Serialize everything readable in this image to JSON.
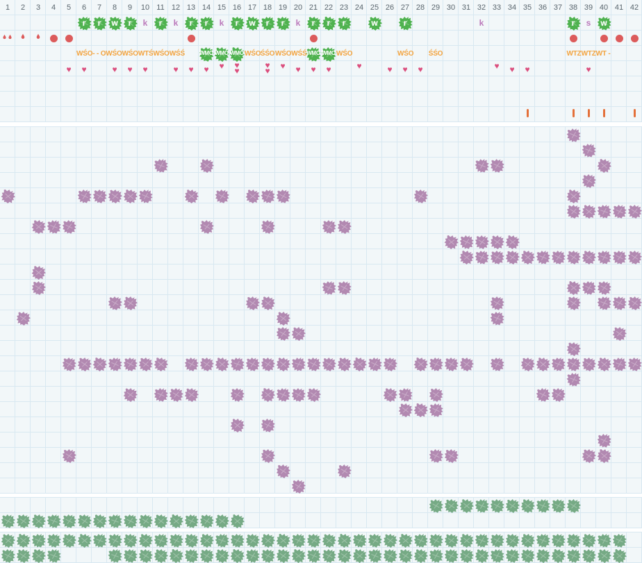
{
  "colors": {
    "band_bg": "#f2f7f9",
    "grid_line": "#d8e8f1",
    "week_text": "#5a666e",
    "green_blob": "#4fb24f",
    "purple_blob": "#b289b1",
    "sage_blob": "#76aa85",
    "red_mark": "#dc5b5b",
    "heart_pink": "#db4e7d",
    "code_orange": "#f3a440",
    "tick_orange": "#e4703a",
    "letter_purple": "#bb79bb",
    "blob_letter_white": "#ffffff"
  },
  "chart_data": {
    "type": "heatmap",
    "title": "",
    "x_axis_label": "",
    "weeks": [
      1,
      2,
      3,
      4,
      5,
      6,
      7,
      8,
      9,
      10,
      11,
      12,
      13,
      14,
      15,
      16,
      17,
      18,
      19,
      20,
      21,
      22,
      23,
      24,
      25,
      26,
      27,
      28,
      29,
      30,
      31,
      32,
      33,
      34,
      35,
      36,
      37,
      38,
      39,
      40,
      41,
      42
    ],
    "top": {
      "letters": [
        {
          "col": 6,
          "ch": "r",
          "blob": true
        },
        {
          "col": 7,
          "ch": "r",
          "blob": true
        },
        {
          "col": 8,
          "ch": "w",
          "blob": true
        },
        {
          "col": 9,
          "ch": "r",
          "blob": true
        },
        {
          "col": 10,
          "ch": "k",
          "blob": false
        },
        {
          "col": 11,
          "ch": "r",
          "blob": true
        },
        {
          "col": 12,
          "ch": "k",
          "blob": false
        },
        {
          "col": 13,
          "ch": "r",
          "blob": true
        },
        {
          "col": 14,
          "ch": "r",
          "blob": true
        },
        {
          "col": 15,
          "ch": "k",
          "blob": false
        },
        {
          "col": 16,
          "ch": "r",
          "blob": true
        },
        {
          "col": 17,
          "ch": "w",
          "blob": true
        },
        {
          "col": 18,
          "ch": "r",
          "blob": true
        },
        {
          "col": 19,
          "ch": "r",
          "blob": true
        },
        {
          "col": 20,
          "ch": "k",
          "blob": false
        },
        {
          "col": 21,
          "ch": "r",
          "blob": true
        },
        {
          "col": 22,
          "ch": "r",
          "blob": true
        },
        {
          "col": 23,
          "ch": "r",
          "blob": true
        },
        {
          "col": 25,
          "ch": "w",
          "blob": true
        },
        {
          "col": 27,
          "ch": "r",
          "blob": true
        },
        {
          "col": 32,
          "ch": "k",
          "blob": false
        },
        {
          "col": 38,
          "ch": "r",
          "blob": true
        },
        {
          "col": 39,
          "ch": "s",
          "blob": false
        },
        {
          "col": 40,
          "ch": "w",
          "blob": true
        }
      ],
      "water_marks": [
        {
          "col": 1,
          "type": "drop-pair"
        },
        {
          "col": 2,
          "type": "drop"
        },
        {
          "col": 3,
          "type": "drop"
        },
        {
          "col": 4,
          "type": "dot"
        },
        {
          "col": 5,
          "type": "dot"
        },
        {
          "col": 13,
          "type": "dot"
        },
        {
          "col": 21,
          "type": "dot"
        },
        {
          "col": 38,
          "type": "dot"
        },
        {
          "col": 40,
          "type": "dot"
        },
        {
          "col": 41,
          "type": "dot"
        },
        {
          "col": 42,
          "type": "dot"
        }
      ],
      "code_blobs": [
        {
          "col": 14,
          "text": "WMO"
        },
        {
          "col": 15,
          "text": "WMO"
        },
        {
          "col": 16,
          "text": "WMO"
        },
        {
          "col": 21,
          "text": "WMO"
        },
        {
          "col": 22,
          "text": "WMO"
        }
      ],
      "code_texts": [
        {
          "col": 6,
          "span": 7,
          "text": "WŚO- - OWŚOWŚOWTŚWŚOWŚŚ"
        },
        {
          "col": 17,
          "span": 1,
          "text": "WŚO"
        },
        {
          "col": 18,
          "span": 1,
          "text": "ŚŚO"
        },
        {
          "col": 19,
          "span": 2,
          "text": "WŚOWŚŚ"
        },
        {
          "col": 23,
          "span": 1,
          "text": "WŚO"
        },
        {
          "col": 27,
          "span": 1,
          "text": "WŚO"
        },
        {
          "col": 29,
          "span": 1,
          "text": "ŚŚO"
        },
        {
          "col": 38,
          "span": 3,
          "text": "WTZWTZWT -"
        }
      ],
      "hearts": [
        {
          "col": 5
        },
        {
          "col": 6
        },
        {
          "col": 8
        },
        {
          "col": 9
        },
        {
          "col": 10
        },
        {
          "col": 12
        },
        {
          "col": 13
        },
        {
          "col": 14
        },
        {
          "col": 15,
          "pos": "high"
        },
        {
          "col": 16,
          "count": 2
        },
        {
          "col": 18,
          "count": 2
        },
        {
          "col": 19,
          "pos": "high"
        },
        {
          "col": 20
        },
        {
          "col": 21
        },
        {
          "col": 22
        },
        {
          "col": 24,
          "pos": "high"
        },
        {
          "col": 26
        },
        {
          "col": 27
        },
        {
          "col": 28
        },
        {
          "col": 33,
          "pos": "high"
        },
        {
          "col": 34
        },
        {
          "col": 35
        },
        {
          "col": 39
        }
      ],
      "ticks": [
        35,
        38,
        39,
        40,
        42
      ]
    },
    "main_rows": [
      [
        38
      ],
      [
        39
      ],
      [
        11,
        14,
        32,
        33,
        40
      ],
      [
        39
      ],
      [
        1,
        {
          "f": 6,
          "t": 10
        },
        13,
        15,
        {
          "f": 17,
          "t": 19
        },
        28,
        38
      ],
      [
        {
          "f": 38,
          "t": 42
        }
      ],
      [
        {
          "f": 3,
          "t": 5
        },
        14,
        18,
        22,
        23
      ],
      [
        {
          "f": 30,
          "t": 34
        }
      ],
      [
        {
          "f": 31,
          "t": 42
        }
      ],
      [
        3
      ],
      [
        3,
        22,
        23,
        38,
        39,
        40
      ],
      [
        8,
        9,
        17,
        18,
        33,
        38,
        40,
        41,
        42
      ],
      [
        2,
        19,
        33
      ],
      [
        19,
        20,
        41
      ],
      [
        38
      ],
      [
        {
          "f": 5,
          "t": 11
        },
        {
          "f": 13,
          "t": 26
        },
        {
          "f": 28,
          "t": 31
        },
        33,
        {
          "f": 35,
          "t": 42
        }
      ],
      [
        38
      ],
      [
        9,
        11,
        12,
        13,
        16,
        {
          "f": 18,
          "t": 21
        },
        26,
        27,
        29,
        36,
        37
      ],
      [
        27,
        28,
        29
      ],
      [
        16,
        18
      ],
      [
        40
      ],
      [
        5,
        18,
        29,
        30,
        39,
        40
      ],
      [
        19,
        23
      ],
      [
        20
      ]
    ],
    "bottom_bands": [
      {
        "rows": [
          [
            {
              "f": 29,
              "t": 38
            }
          ],
          [
            {
              "f": 1,
              "t": 16
            }
          ]
        ]
      },
      {
        "rows": [
          [
            {
              "f": 1,
              "t": 41
            }
          ],
          [
            {
              "f": 1,
              "t": 4
            },
            {
              "f": 8,
              "t": 41
            }
          ]
        ]
      }
    ]
  }
}
